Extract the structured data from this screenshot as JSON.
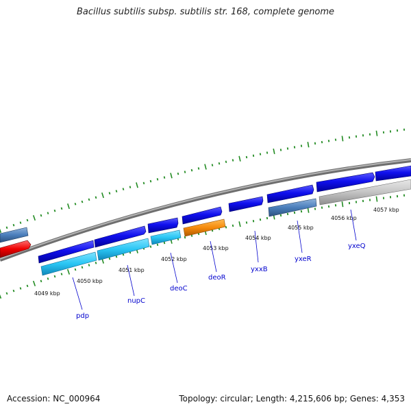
{
  "title": "Bacillus subtilis subsp. subtilis str. 168, complete genome",
  "footer": {
    "accession": "Accession: NC_000964",
    "topology": "Topology: circular; Length: 4,215,606 bp; Genes: 4,353"
  },
  "colors": {
    "backbone": "#8a8a8a",
    "tick": "#228b22",
    "label_line": "#0000cd",
    "label_text": "#0000cd",
    "gene_blue": "#0a0ae6",
    "gene_cyan": "#22c4f2",
    "gene_orange": "#f58a0a",
    "gene_steel": "#4a7ebb",
    "gene_red": "#ee0000",
    "gene_gray": "#c4c4c4"
  },
  "scale_labels": [
    {
      "text": "4049 kbp"
    },
    {
      "text": "4050 kbp"
    },
    {
      "text": "4051 kbp"
    },
    {
      "text": "4052 kbp"
    },
    {
      "text": "4053 kbp"
    },
    {
      "text": "4054 kbp"
    },
    {
      "text": "4055 kbp"
    },
    {
      "text": "4056 kbp"
    },
    {
      "text": "4057 kbp"
    }
  ],
  "gene_labels": [
    {
      "text": "pdp"
    },
    {
      "text": "nupC"
    },
    {
      "text": "deoC"
    },
    {
      "text": "deoR"
    },
    {
      "text": "yxxB"
    },
    {
      "text": "yxeR"
    },
    {
      "text": "yxeQ"
    }
  ]
}
